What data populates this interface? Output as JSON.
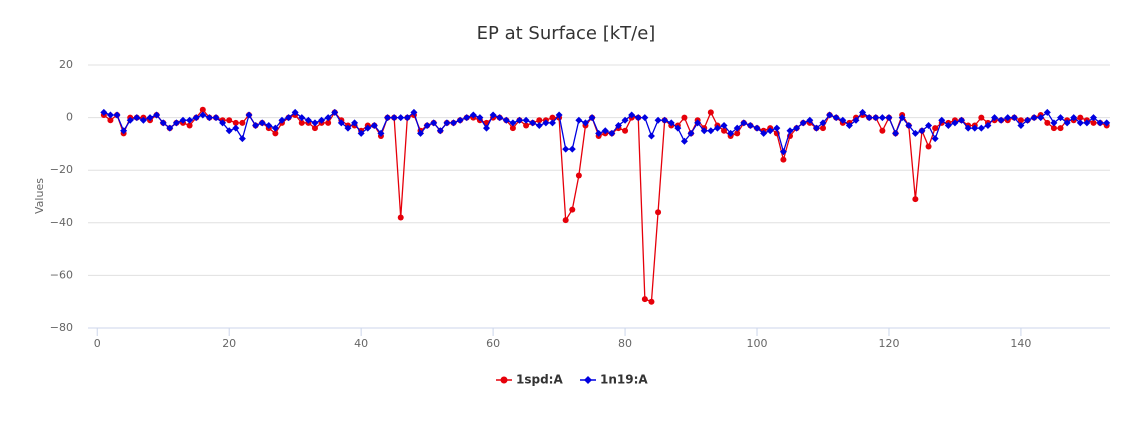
{
  "chart_data": {
    "type": "line",
    "title": "EP at Surface [kT/e]",
    "y_label": "Values",
    "x": [
      1,
      2,
      3,
      4,
      5,
      6,
      7,
      8,
      9,
      10,
      11,
      12,
      13,
      14,
      15,
      16,
      17,
      18,
      19,
      20,
      21,
      22,
      23,
      24,
      25,
      26,
      27,
      28,
      29,
      30,
      31,
      32,
      33,
      34,
      35,
      36,
      37,
      38,
      39,
      40,
      41,
      42,
      43,
      44,
      45,
      46,
      47,
      48,
      49,
      50,
      51,
      52,
      53,
      54,
      55,
      56,
      57,
      58,
      59,
      60,
      61,
      62,
      63,
      64,
      65,
      66,
      67,
      68,
      69,
      70,
      71,
      72,
      73,
      74,
      75,
      76,
      77,
      78,
      79,
      80,
      81,
      82,
      83,
      84,
      85,
      86,
      87,
      88,
      89,
      90,
      91,
      92,
      93,
      94,
      95,
      96,
      97,
      98,
      99,
      100,
      101,
      102,
      103,
      104,
      105,
      106,
      107,
      108,
      109,
      110,
      111,
      112,
      113,
      114,
      115,
      116,
      117,
      118,
      119,
      120,
      121,
      122,
      123,
      124,
      125,
      126,
      127,
      128,
      129,
      130,
      131,
      132,
      133,
      134,
      135,
      136,
      137,
      138,
      139,
      140,
      141,
      142,
      143,
      144,
      145,
      146,
      147,
      148,
      149,
      150,
      151,
      152,
      153
    ],
    "series": [
      {
        "name": "1spd:A",
        "color": "#e6000a",
        "marker": "circle",
        "values": [
          1,
          -1,
          1,
          -6,
          0,
          0,
          0,
          -1,
          1,
          -2,
          -4,
          -2,
          -2,
          -3,
          0,
          3,
          0,
          0,
          -1,
          -1,
          -2,
          -2,
          1,
          -3,
          -2,
          -4,
          -6,
          -2,
          0,
          1,
          -2,
          -2,
          -4,
          -2,
          -2,
          2,
          -1,
          -3,
          -3,
          -5,
          -3,
          -3,
          -7,
          0,
          0,
          -38,
          0,
          1,
          -5,
          -3,
          -2,
          -5,
          -2,
          -2,
          -1,
          0,
          0,
          -1,
          -2,
          0,
          0,
          -1,
          -4,
          -1,
          -3,
          -2,
          -1,
          -1,
          0,
          0,
          -39,
          -35,
          -22,
          -3,
          0,
          -7,
          -6,
          -6,
          -4,
          -5,
          0,
          0,
          -69,
          -70,
          -36,
          -1,
          -3,
          -3,
          0,
          -6,
          -1,
          -4,
          2,
          -3,
          -5,
          -7,
          -6,
          -2,
          -3,
          -4,
          -5,
          -4,
          -6,
          -16,
          -7,
          -4,
          -2,
          -2,
          -4,
          -4,
          1,
          0,
          -2,
          -2,
          0,
          1,
          0,
          0,
          -5,
          0,
          -6,
          1,
          -3,
          -31,
          -5,
          -11,
          -4,
          -2,
          -2,
          -1,
          -1,
          -3,
          -3,
          0,
          -2,
          -1,
          -1,
          -1,
          0,
          -1,
          -1,
          0,
          1,
          -2,
          -4,
          -4,
          -1,
          -1,
          0,
          -1,
          -2,
          -2,
          -3
        ]
      },
      {
        "name": "1n19:A",
        "color": "#0000e0",
        "marker": "diamond",
        "values": [
          2,
          1,
          1,
          -5,
          -1,
          0,
          -1,
          0,
          1,
          -2,
          -4,
          -2,
          -1,
          -1,
          0,
          1,
          0,
          0,
          -2,
          -5,
          -4,
          -8,
          1,
          -3,
          -2,
          -3,
          -4,
          -1,
          0,
          2,
          0,
          -1,
          -2,
          -1,
          0,
          2,
          -2,
          -4,
          -2,
          -6,
          -4,
          -3,
          -6,
          0,
          0,
          0,
          0,
          2,
          -6,
          -3,
          -2,
          -5,
          -2,
          -2,
          -1,
          0,
          1,
          0,
          -4,
          1,
          0,
          -1,
          -2,
          -1,
          -1,
          -2,
          -3,
          -2,
          -2,
          1,
          -12,
          -12,
          -1,
          -2,
          0,
          -6,
          -5,
          -6,
          -3,
          -1,
          1,
          0,
          0,
          -7,
          -1,
          -1,
          -2,
          -4,
          -9,
          -6,
          -2,
          -5,
          -5,
          -4,
          -3,
          -6,
          -4,
          -2,
          -3,
          -4,
          -6,
          -5,
          -4,
          -13,
          -5,
          -4,
          -2,
          -1,
          -4,
          -2,
          1,
          0,
          -1,
          -3,
          -1,
          2,
          0,
          0,
          0,
          0,
          -6,
          0,
          -3,
          -6,
          -5,
          -3,
          -8,
          -1,
          -3,
          -2,
          -1,
          -4,
          -4,
          -4,
          -3,
          0,
          -1,
          0,
          0,
          -3,
          -1,
          0,
          0,
          2,
          -2,
          0,
          -2,
          0,
          -2,
          -2,
          0,
          -2,
          -2
        ]
      }
    ],
    "xlim": [
      -1.4,
      153.5
    ],
    "xticks": [
      0,
      20,
      40,
      60,
      80,
      100,
      120,
      140
    ],
    "ylim": [
      -80,
      20
    ],
    "yticks": [
      {
        "value": -80,
        "label": "−80"
      },
      {
        "value": -60,
        "label": "−60"
      },
      {
        "value": -40,
        "label": "−40"
      },
      {
        "value": -20,
        "label": "−20"
      },
      0,
      20
    ],
    "grid": true,
    "legend": "bottom"
  }
}
